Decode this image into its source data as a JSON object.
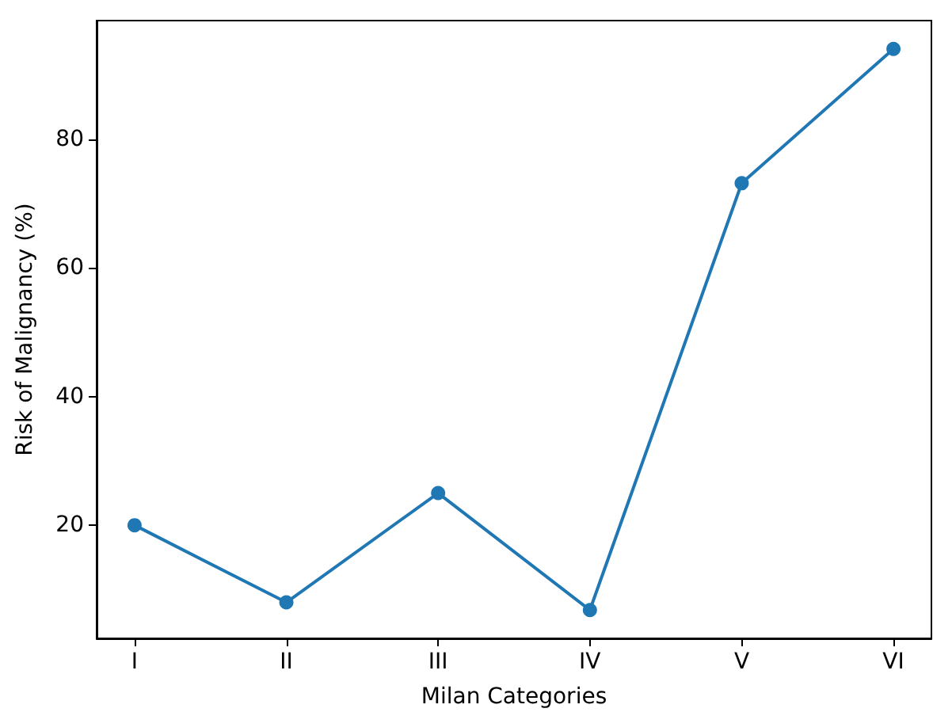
{
  "chart_data": {
    "type": "line",
    "xlabel": "Milan Categories",
    "ylabel": "Risk of Malignancy (%)",
    "categories": [
      "I",
      "II",
      "III",
      "IV",
      "V",
      "VI"
    ],
    "series": [
      {
        "color": "#1f77b4",
        "values": [
          20,
          8,
          25,
          6.8,
          73.2,
          94.1
        ]
      }
    ],
    "ylim": [
      2.4,
      98.5
    ],
    "yticks": [
      20,
      40,
      60,
      80
    ],
    "grid": false,
    "marker": "circle",
    "line_style": "solid"
  }
}
